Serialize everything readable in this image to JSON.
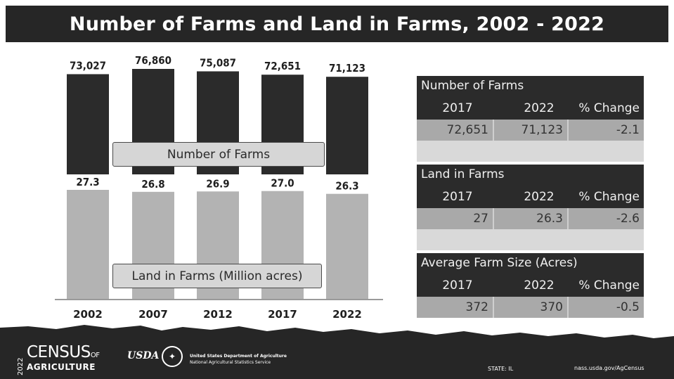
{
  "title": "Number of Farms and Land in Farms, 2002 - 2022",
  "chart_data": {
    "type": "bar",
    "categories": [
      "2002",
      "2007",
      "2012",
      "2017",
      "2022"
    ],
    "series": [
      {
        "name": "Number of Farms",
        "values": [
          73027,
          76860,
          75087,
          72651,
          71123
        ],
        "labels": [
          "73,027",
          "76,860",
          "75,087",
          "72,651",
          "71,123"
        ],
        "color": "#2b2b2b"
      },
      {
        "name": "Land in Farms (Million acres)",
        "values": [
          27.3,
          26.8,
          26.9,
          27.0,
          26.3
        ],
        "labels": [
          "27.3",
          "26.8",
          "26.9",
          "27.0",
          "26.3"
        ],
        "color": "#b3b3b3"
      }
    ]
  },
  "tables": [
    {
      "title": "Number of Farms",
      "headers": [
        "2017",
        "2022",
        "% Change"
      ],
      "values": [
        "72,651",
        "71,123",
        "-2.1"
      ]
    },
    {
      "title": "Land in Farms",
      "headers": [
        "2017",
        "2022",
        "% Change"
      ],
      "values": [
        "27",
        "26.3",
        "-2.6"
      ]
    },
    {
      "title": "Average Farm Size (Acres)",
      "headers": [
        "2017",
        "2022",
        "% Change"
      ],
      "values": [
        "372",
        "370",
        "-0.5"
      ]
    }
  ],
  "footer": {
    "census_year": "2022",
    "census_main": "CENSUS",
    "census_of": "OF",
    "census_sub": "AGRICULTURE",
    "usda": "USDA",
    "dept_line1": "United States Department of Agriculture",
    "dept_line2": "National Agricultural Statistics Service",
    "state": "STATE: IL",
    "site": "nass.usda.gov/AgCensus"
  }
}
